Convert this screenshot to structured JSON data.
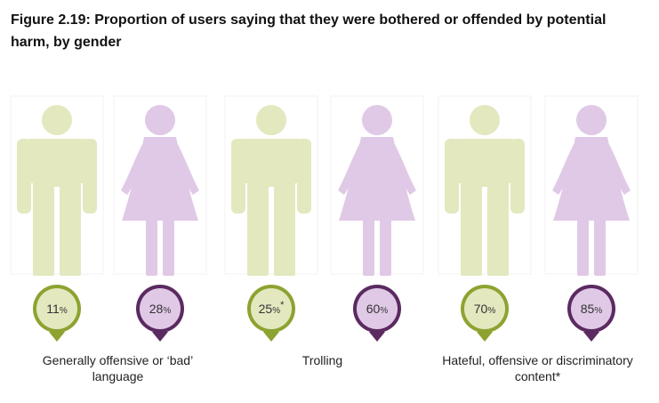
{
  "figure": {
    "title": "Figure 2.19: Proportion of users saying that they were bothered or offended by potential harm, by gender"
  },
  "colors": {
    "male_light": "#e3e8bf",
    "male_dark": "#8da331",
    "female_light": "#e0c9e6",
    "female_dark": "#5b2a61",
    "badge_text": "#333333"
  },
  "chart_data": {
    "type": "bar",
    "title": "Figure 2.19: Proportion of users saying that they were bothered or offended by potential harm, by gender",
    "categories": [
      "Generally offensive or ‘bad’ language",
      "Trolling",
      "Hateful, offensive or discriminatory content*"
    ],
    "unit": "%",
    "ylim": [
      0,
      100
    ],
    "series": [
      {
        "values": [
          11,
          25,
          70
        ],
        "annotations": [
          "",
          "*",
          ""
        ]
      },
      {
        "values": [
          28,
          60,
          85
        ],
        "annotations": [
          "",
          "",
          ""
        ]
      }
    ]
  }
}
